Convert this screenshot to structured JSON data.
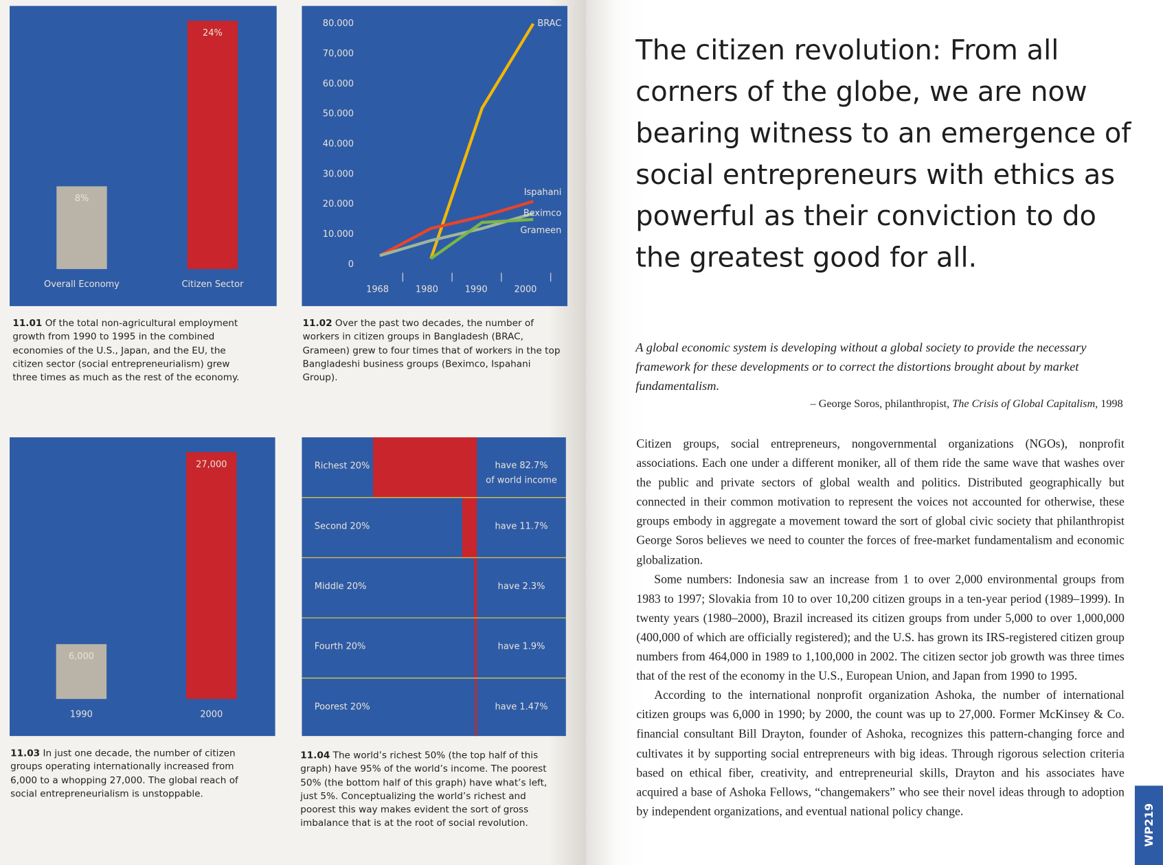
{
  "chart_data": [
    {
      "type": "bar",
      "categories": [
        "Overall Economy",
        "Citizen Sector"
      ],
      "values": [
        8,
        24
      ],
      "value_labels": [
        "8%",
        "24%"
      ],
      "colors": [
        "#b9b4a7",
        "#c8262c"
      ]
    },
    {
      "type": "line",
      "x": [
        "1968",
        "1980",
        "1990",
        "2000"
      ],
      "series": [
        {
          "name": "BRAC",
          "color": "#f2b705",
          "values": [
            null,
            2000,
            52000,
            80000
          ]
        },
        {
          "name": "Ispahani",
          "color": "#e8452a",
          "values": [
            3000,
            12000,
            16000,
            21000
          ]
        },
        {
          "name": "Beximco",
          "color": "#9fb59a",
          "values": [
            3000,
            8000,
            12000,
            17000
          ]
        },
        {
          "name": "Grameen",
          "color": "#7ab648",
          "values": [
            null,
            2000,
            14000,
            15000
          ]
        }
      ],
      "ylim": [
        0,
        80000
      ],
      "yticks": [
        0,
        {
          "value": 10000,
          "label": "10.000"
        },
        {
          "value": 20000,
          "label": "20.000"
        },
        {
          "value": 30000,
          "label": "30.000"
        },
        {
          "value": 40000,
          "label": "40.000"
        },
        {
          "value": 50000,
          "label": "50.000"
        },
        {
          "value": 60000,
          "label": "60.000"
        },
        {
          "value": 70000,
          "label": "70,000"
        },
        {
          "value": 80000,
          "label": "80.000"
        }
      ]
    },
    {
      "type": "bar",
      "categories": [
        "1990",
        "2000"
      ],
      "values": [
        6000,
        27000
      ],
      "value_labels": [
        "6,000",
        "27,000"
      ],
      "colors": [
        "#b9b4a7",
        "#c8262c"
      ]
    },
    {
      "type": "distribution",
      "categories": [
        "Richest 20%",
        "Second 20%",
        "Middle 20%",
        "Fourth 20%",
        "Poorest 20%"
      ],
      "values": [
        82.7,
        11.7,
        2.3,
        1.9,
        1.47
      ],
      "value_labels": [
        "have 82.7% of world income",
        "have 11.7%",
        "have 2.3%",
        "have 1.9%",
        "have 1.47%"
      ],
      "color": "#c8262c"
    }
  ],
  "captions": [
    {
      "number": "11.01",
      "text": "Of the total non-agricultural employment growth from 1990 to 1995 in the combined economies of the U.S., Japan, and the EU, the citizen sector (social entrepreneurialism) grew three times as much as the rest of the economy."
    },
    {
      "number": "11.02",
      "text": "Over the past two decades, the number of workers in citizen groups in Bangladesh (BRAC, Grameen) grew to four times that of workers in the top Bangladeshi business groups (Beximco, Ispahani Group)."
    },
    {
      "number": "11.03",
      "text": "In just one decade, the number of citizen groups operating internationally increased from 6,000 to a whopping 27,000. The global reach of social entrepreneurialism is unstoppable."
    },
    {
      "number": "11.04",
      "text": "The world’s richest 50% (the top half of this graph) have 95% of the world’s income. The poorest 50% (the bottom half of this graph) have what’s left, just 5%. Conceptualizing the world’s richest and poorest this way makes evident the sort of gross imbalance that is at the root of social revolution."
    }
  ],
  "headline": "The citizen revolution: From all corners of the globe, we are now bearing witness to an emergence of social entrepreneurs with ethics as powerful as their conviction to do the greatest good for all.",
  "quote": {
    "text": "A global economic system is developing without a global society to provide the necessary framework for these developments or to correct the distortions brought about by market fundamentalism.",
    "attribution": "– George Soros, philanthropist, ",
    "book": "The Crisis of Global Capitalism",
    "year": ", 1998"
  },
  "body": [
    "Citizen groups, social entrepreneurs, nongovernmental organizations (NGOs), nonprofit associations. Each one under a different moniker, all of them ride the same wave that washes over the public and private sectors of global wealth and politics. Distributed geographically but connected in their common motivation to represent the voices not accounted for otherwise, these groups embody in aggregate a movement toward the sort of global civic society that philanthropist George Soros believes we need to counter the forces of free-market fundamentalism and economic globalization.",
    "Some numbers: Indonesia saw an increase from 1 to over 2,000 environmental groups from 1983 to 1997; Slovakia from 10 to over 10,200 citizen groups in a ten-year period (1989–1999). In twenty years (1980–2000), Brazil increased its citizen groups from under 5,000 to over 1,000,000 (400,000 of which are officially registered); and the U.S. has grown its IRS-registered citizen group numbers from 464,000 in 1989 to 1,100,000 in 2002. The citizen sector job growth was three times that of the rest of the economy in the U.S., European Union, and Japan from 1990 to 1995.",
    "According to the international nonprofit organization Ashoka, the number of international citizen groups was 6,000 in 1990; by 2000, the count was up to 27,000. Former McKinsey & Co. financial consultant Bill Drayton, founder of Ashoka, recognizes this pattern-changing force and cultivates it by supporting social entrepreneurs with big ideas. Through rigorous selection criteria based on ethical fiber, creativity, and entrepreneurial skills, Drayton and his associates have acquired a base of Ashoka Fellows, “changemakers” who see their novel ideas through to adoption by independent organizations, and eventual national policy change."
  ],
  "page_tab": "WP219"
}
